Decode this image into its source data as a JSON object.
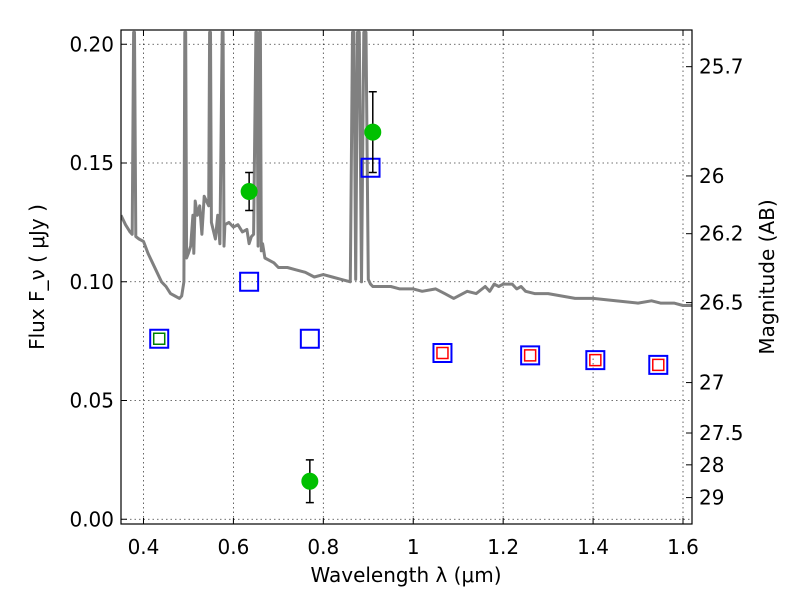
{
  "chart_data": {
    "type": "scatter",
    "title": "",
    "xlabel": "Wavelength  λ (μm)",
    "ylabel": "Flux  F_ν  ( μJy )",
    "ylabel_right": "Magnitude (AB)",
    "xlim": [
      0.35,
      1.62
    ],
    "ylim": [
      -0.002,
      0.206
    ],
    "grid": true,
    "x_ticks": [
      "0.4",
      "0.6",
      "0.8",
      "1",
      "1.2",
      "1.4",
      "1.6"
    ],
    "x_tick_values": [
      0.4,
      0.6,
      0.8,
      1.0,
      1.2,
      1.4,
      1.6
    ],
    "y_ticks": [
      "0.00",
      "0.05",
      "0.10",
      "0.15",
      "0.20"
    ],
    "y_tick_values": [
      0.0,
      0.05,
      0.1,
      0.15,
      0.2
    ],
    "right_ticks": [
      "25.7",
      "26",
      "26.2",
      "26.5",
      "27",
      "27.5",
      "28",
      "29"
    ],
    "right_tick_magnitudes": [
      25.7,
      26.0,
      26.2,
      26.5,
      27.0,
      27.5,
      28.0,
      29.0
    ],
    "ab_zero_point_ujy": 3631000000,
    "series": [
      {
        "style": "line",
        "color": "#808080",
        "x": [
          0.35,
          0.36,
          0.37,
          0.375,
          0.378,
          0.38,
          0.383,
          0.39,
          0.4,
          0.41,
          0.42,
          0.43,
          0.44,
          0.45,
          0.46,
          0.47,
          0.48,
          0.485,
          0.49,
          0.492,
          0.494,
          0.496,
          0.5,
          0.505,
          0.51,
          0.512,
          0.515,
          0.52,
          0.525,
          0.53,
          0.535,
          0.54,
          0.545,
          0.547,
          0.549,
          0.551,
          0.56,
          0.565,
          0.57,
          0.575,
          0.577,
          0.579,
          0.581,
          0.59,
          0.6,
          0.61,
          0.62,
          0.63,
          0.635,
          0.64,
          0.645,
          0.65,
          0.652,
          0.655,
          0.658,
          0.66,
          0.662,
          0.665,
          0.67,
          0.69,
          0.7,
          0.72,
          0.74,
          0.76,
          0.78,
          0.8,
          0.82,
          0.84,
          0.86,
          0.865,
          0.868,
          0.872,
          0.876,
          0.88,
          0.885,
          0.89,
          0.895,
          0.9,
          0.905,
          0.91,
          0.93,
          0.95,
          0.97,
          1.0,
          1.02,
          1.05,
          1.07,
          1.09,
          1.12,
          1.14,
          1.16,
          1.17,
          1.18,
          1.19,
          1.2,
          1.22,
          1.23,
          1.24,
          1.25,
          1.27,
          1.3,
          1.33,
          1.36,
          1.4,
          1.45,
          1.5,
          1.53,
          1.55,
          1.58,
          1.6,
          1.62
        ],
        "y": [
          0.128,
          0.124,
          0.121,
          0.12,
          0.205,
          0.205,
          0.119,
          0.118,
          0.117,
          0.112,
          0.108,
          0.104,
          0.1,
          0.098,
          0.095,
          0.094,
          0.093,
          0.094,
          0.1,
          0.205,
          0.205,
          0.11,
          0.112,
          0.115,
          0.128,
          0.112,
          0.134,
          0.128,
          0.132,
          0.12,
          0.136,
          0.134,
          0.132,
          0.205,
          0.205,
          0.125,
          0.118,
          0.128,
          0.116,
          0.205,
          0.205,
          0.115,
          0.124,
          0.125,
          0.123,
          0.124,
          0.121,
          0.122,
          0.116,
          0.119,
          0.12,
          0.205,
          0.205,
          0.115,
          0.205,
          0.205,
          0.113,
          0.116,
          0.11,
          0.108,
          0.106,
          0.106,
          0.105,
          0.104,
          0.102,
          0.103,
          0.102,
          0.101,
          0.1,
          0.205,
          0.205,
          0.101,
          0.205,
          0.205,
          0.1,
          0.205,
          0.205,
          0.101,
          0.099,
          0.098,
          0.098,
          0.098,
          0.097,
          0.097,
          0.096,
          0.097,
          0.095,
          0.093,
          0.096,
          0.095,
          0.098,
          0.096,
          0.099,
          0.098,
          0.099,
          0.099,
          0.097,
          0.098,
          0.096,
          0.095,
          0.095,
          0.094,
          0.093,
          0.093,
          0.092,
          0.091,
          0.092,
          0.091,
          0.091,
          0.09,
          0.09
        ]
      },
      {
        "style": "open-square",
        "color": "#0000ff",
        "x": [
          0.435,
          0.635,
          0.77,
          0.905,
          1.065,
          1.26,
          1.405,
          1.545
        ],
        "y": [
          0.076,
          0.1,
          0.076,
          0.148,
          0.07,
          0.069,
          0.067,
          0.065
        ]
      },
      {
        "style": "open-square-small",
        "color": "#ff0000",
        "x": [
          1.065,
          1.26,
          1.405,
          1.545
        ],
        "y": [
          0.07,
          0.069,
          0.067,
          0.065
        ]
      },
      {
        "style": "open-square-small",
        "color": "#008000",
        "x": [
          0.435
        ],
        "y": [
          0.076
        ]
      },
      {
        "style": "filled-circle-errorbar",
        "color": "#00c000",
        "x": [
          0.635,
          0.77,
          0.91
        ],
        "y": [
          0.138,
          0.016,
          0.163
        ],
        "yerr": [
          0.008,
          0.009,
          0.017
        ]
      }
    ]
  }
}
